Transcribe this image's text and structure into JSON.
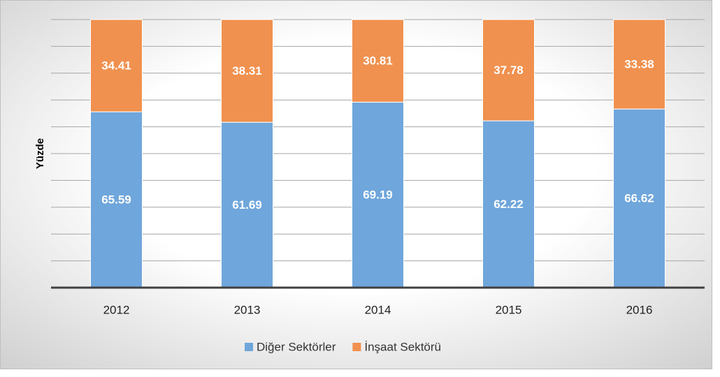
{
  "chart_data": {
    "type": "stacked_bar",
    "y_label": "Yüzde",
    "categories": [
      "2012",
      "2013",
      "2014",
      "2015",
      "2016"
    ],
    "series": [
      {
        "name": "Diğer Sektörler",
        "color": "#6fa6db",
        "values": [
          65.59,
          61.69,
          69.19,
          62.22,
          66.62
        ]
      },
      {
        "name": "İnşaat Sektörü",
        "color": "#f0914f",
        "values": [
          34.41,
          38.31,
          30.81,
          37.78,
          33.38
        ]
      }
    ],
    "ylim": [
      0,
      100
    ],
    "yticks": [
      0,
      10,
      20,
      30,
      40,
      50,
      60,
      70,
      80,
      90,
      100
    ],
    "show_ytick_labels": false,
    "grid": true,
    "legend": "bottom"
  }
}
